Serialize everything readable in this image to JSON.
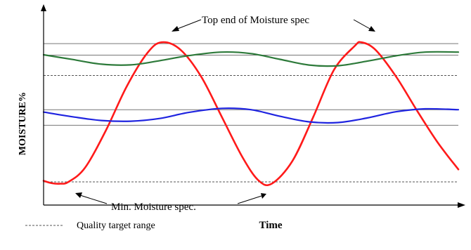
{
  "chart_data": {
    "type": "line",
    "xlabel": "Time",
    "ylabel": "MOISTURE%",
    "grid": false,
    "xlim": [
      0,
      100
    ],
    "ylim": [
      0,
      100
    ],
    "annotations": {
      "top_spec": "Top end of Moisture spec",
      "min_spec": "Min. Moisture spec."
    },
    "legend": {
      "dashed_label": "Quality target range"
    },
    "reference_lines": [
      {
        "y": 91.6,
        "style": "solid"
      },
      {
        "y": 84.8,
        "style": "solid"
      },
      {
        "y": 72.7,
        "style": "dashed"
      },
      {
        "y": 52.4,
        "style": "solid"
      },
      {
        "y": 43.2,
        "style": "solid"
      },
      {
        "y": 9.6,
        "style": "dashed"
      }
    ],
    "series": [
      {
        "color": "#ff1a1a",
        "x": [
          0,
          2,
          4,
          6,
          10,
          15,
          20,
          25,
          28.5,
          33,
          38,
          43,
          48,
          51.8,
          55,
          60,
          65,
          70,
          75,
          76.6,
          80,
          85,
          90,
          95,
          100
        ],
        "values": [
          10.2,
          8.8,
          8.5,
          9.6,
          18,
          40,
          66,
          86,
          92.4,
          88,
          72,
          48,
          24,
          10.5,
          8.5,
          22,
          48,
          76,
          90.2,
          92.4,
          88,
          72,
          52,
          33,
          17
        ]
      },
      {
        "color": "#2d7a3a",
        "x": [
          0,
          7,
          14,
          21,
          28,
          35,
          43,
          50,
          57,
          64,
          71,
          78,
          85,
          92,
          100
        ],
        "values": [
          85,
          82.2,
          79.4,
          79,
          81.5,
          84.5,
          86.6,
          85.7,
          82.3,
          78.9,
          78.5,
          81.2,
          84.4,
          86.6,
          86.6
        ]
      },
      {
        "color": "#1f24e0",
        "x": [
          0,
          7,
          14,
          21,
          28,
          35,
          43,
          50,
          57,
          64,
          71,
          78,
          85,
          92,
          100
        ],
        "values": [
          51,
          48.2,
          46,
          45.6,
          47.2,
          50.8,
          53.2,
          52.4,
          48.5,
          45.2,
          44.8,
          47.5,
          51.2,
          52.9,
          52.4
        ]
      }
    ]
  }
}
